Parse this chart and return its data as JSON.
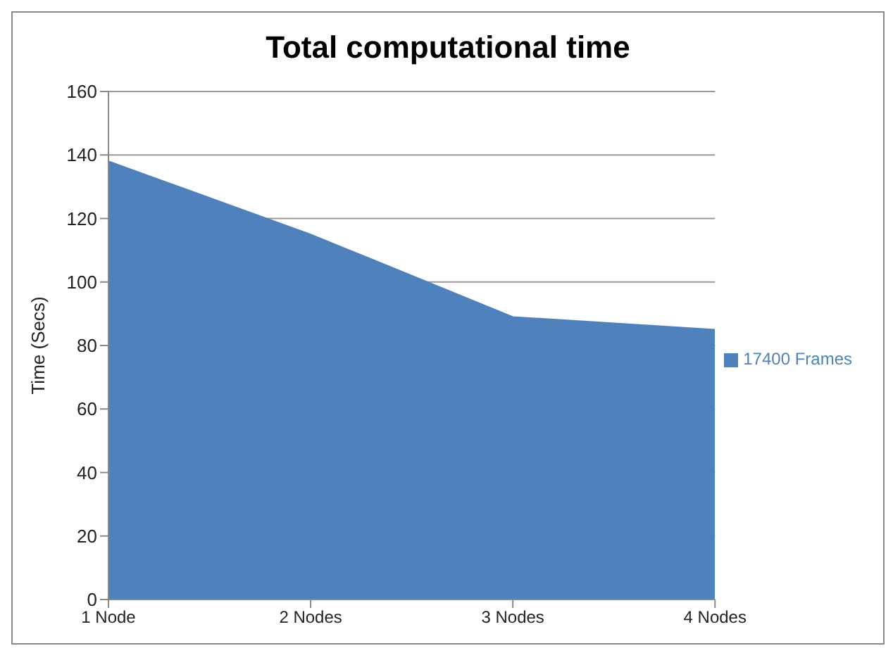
{
  "chart_data": {
    "type": "area",
    "title": "Total computational  time",
    "ylabel": "Time (Secs)",
    "categories": [
      "1 Node",
      "2 Nodes",
      "3 Nodes",
      "4 Nodes"
    ],
    "series": [
      {
        "name": "17400 Frames",
        "color": "#4f81bd",
        "values": [
          138,
          115,
          89,
          85
        ]
      }
    ],
    "ylim": [
      0,
      160
    ],
    "yticks": [
      0,
      20,
      40,
      60,
      80,
      100,
      120,
      140,
      160
    ],
    "grid": "y",
    "legend": "right"
  }
}
